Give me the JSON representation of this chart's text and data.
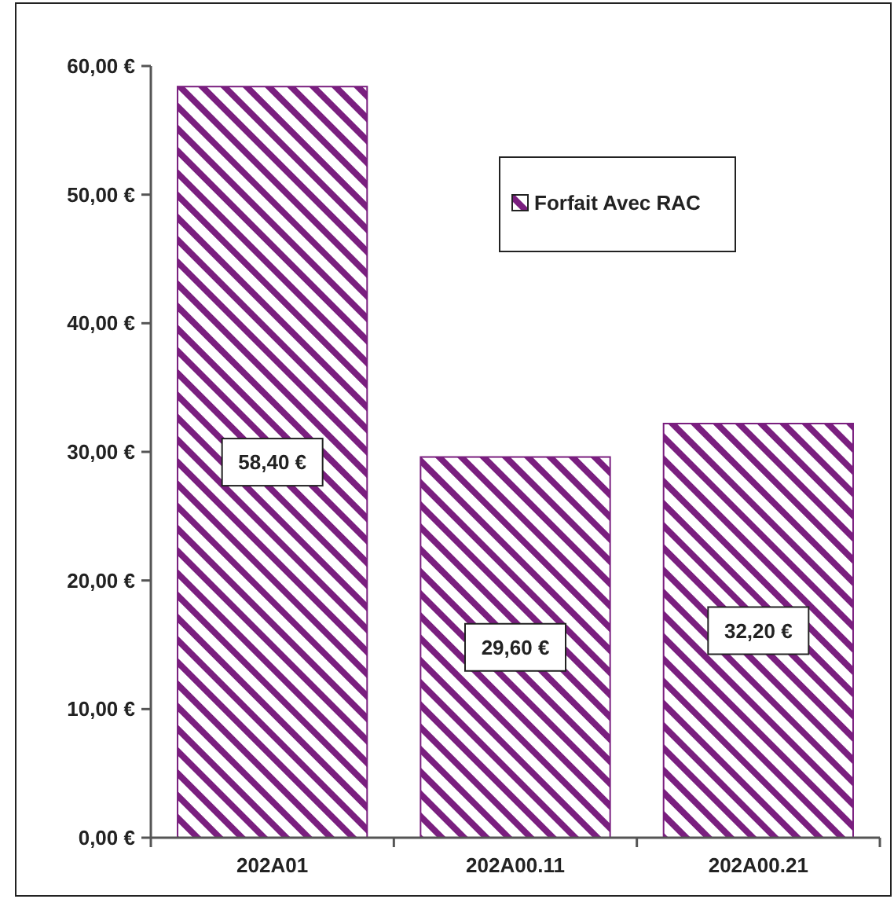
{
  "chart_data": {
    "type": "bar",
    "categories": [
      "202A01",
      "202A00.11",
      "202A00.21"
    ],
    "series": [
      {
        "name": "Forfait Avec RAC",
        "color": "#7a1f7f",
        "values": [
          58.4,
          29.6,
          32.2
        ],
        "value_labels": [
          "58,40 €",
          "29,60 €",
          "32,20 €"
        ]
      }
    ],
    "ylim": [
      0,
      60
    ],
    "yticks": [
      {
        "value": 0,
        "label": "0,00 €"
      },
      {
        "value": 10,
        "label": "10,00 €"
      },
      {
        "value": 20,
        "label": "20,00 €"
      },
      {
        "value": 30,
        "label": "30,00 €"
      },
      {
        "value": 40,
        "label": "40,00 €"
      },
      {
        "value": 50,
        "label": "50,00 €"
      },
      {
        "value": 60,
        "label": "60,00 €"
      }
    ],
    "legend": "top right",
    "grid": false
  }
}
